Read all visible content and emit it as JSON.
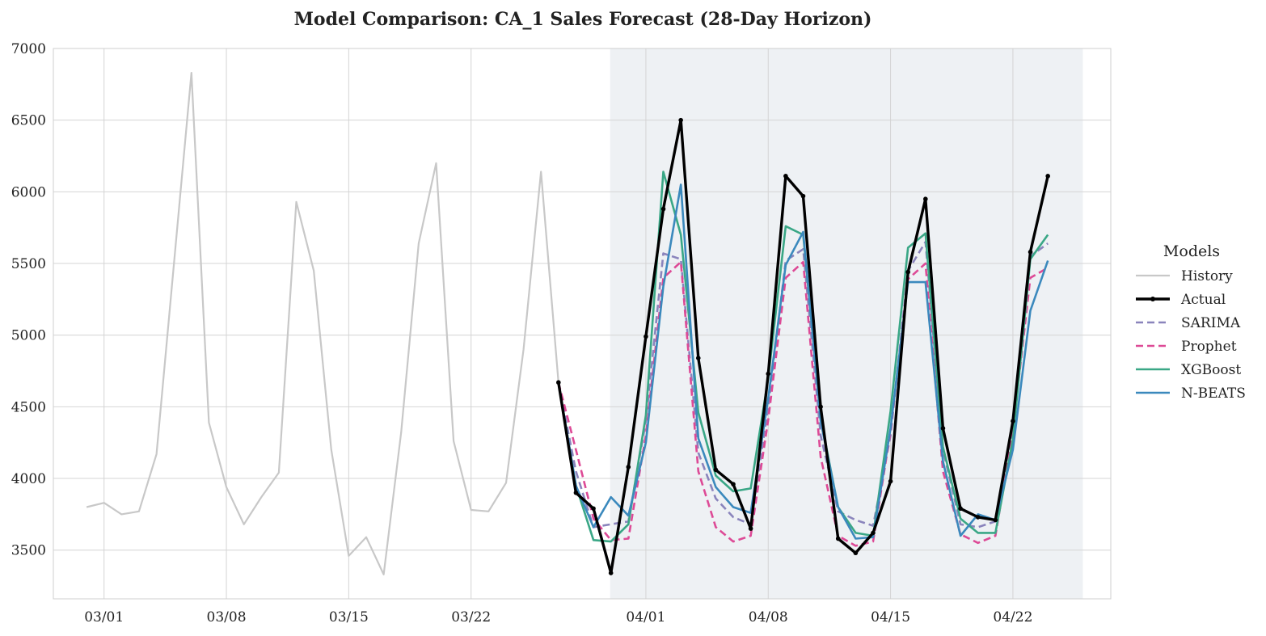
{
  "chart_data": {
    "type": "line",
    "title": "Model Comparison: CA_1 Sales Forecast (28-Day Horizon)",
    "xlabel": "",
    "ylabel": "",
    "grid": true,
    "legend_title": "Models",
    "legend_position": "right",
    "x_start_date": "02/28",
    "x_range_days": [
      -1.9,
      58.6
    ],
    "ylim": [
      3160,
      7000
    ],
    "y_ticks": [
      3500,
      4000,
      4500,
      5000,
      5500,
      6000,
      6500,
      7000
    ],
    "x_ticks": [
      {
        "day": 1,
        "label": "03/01"
      },
      {
        "day": 8,
        "label": "03/08"
      },
      {
        "day": 15,
        "label": "03/15"
      },
      {
        "day": 22,
        "label": "03/22"
      },
      {
        "day": 32,
        "label": "04/01"
      },
      {
        "day": 39,
        "label": "04/08"
      },
      {
        "day": 46,
        "label": "04/15"
      },
      {
        "day": 53,
        "label": "04/22"
      }
    ],
    "forecast_window_days": [
      30,
      57
    ],
    "history": {
      "name": "History",
      "start_day": 0,
      "color": "#c8c8c8",
      "values": [
        3800,
        3830,
        3750,
        3770,
        4170,
        5500,
        6830,
        4390,
        3940,
        3680,
        3870,
        4040,
        5930,
        5450,
        4200,
        3460,
        3590,
        3330,
        4320,
        5640,
        6200,
        4260,
        3780,
        3770,
        3970,
        4900,
        6140,
        4670
      ]
    },
    "series": [
      {
        "name": "Actual",
        "start_day": 27,
        "color": "#000000",
        "style": "solid-marker",
        "values": [
          4670,
          3900,
          3790,
          3340,
          4080,
          4990,
          5880,
          6500,
          4840,
          4060,
          3960,
          3650,
          4730,
          6110,
          5970,
          4500,
          3580,
          3480,
          3620,
          3980,
          5440,
          5950,
          4350,
          3790,
          3730,
          3710,
          4400,
          5580,
          6110
        ]
      },
      {
        "name": "SARIMA",
        "start_day": 27,
        "color": "#8a84bc",
        "style": "dashed",
        "values": [
          4670,
          4050,
          3660,
          3680,
          3700,
          4400,
          5570,
          5530,
          4180,
          3860,
          3730,
          3680,
          4500,
          5520,
          5600,
          4300,
          3770,
          3710,
          3670,
          4300,
          5450,
          5650,
          4200,
          3680,
          3660,
          3700,
          4350,
          5550,
          5640
        ]
      },
      {
        "name": "Prophet",
        "start_day": 27,
        "color": "#dd4a96",
        "style": "dashed",
        "values": [
          4670,
          4200,
          3720,
          3570,
          3580,
          4300,
          5400,
          5510,
          4050,
          3660,
          3560,
          3600,
          4410,
          5400,
          5510,
          4150,
          3600,
          3530,
          3560,
          4330,
          5390,
          5500,
          4050,
          3610,
          3550,
          3600,
          4330,
          5400,
          5470
        ]
      },
      {
        "name": "XGBoost",
        "start_day": 27,
        "color": "#3aa786",
        "style": "solid",
        "values": [
          4670,
          3950,
          3570,
          3560,
          3680,
          4440,
          6140,
          5700,
          4460,
          4020,
          3910,
          3930,
          4700,
          5760,
          5700,
          4420,
          3800,
          3620,
          3600,
          4470,
          5610,
          5710,
          4220,
          3720,
          3620,
          3620,
          4270,
          5530,
          5700
        ]
      },
      {
        "name": "N-BEATS",
        "start_day": 27,
        "color": "#3b89bd",
        "style": "solid",
        "values": [
          4670,
          3950,
          3660,
          3870,
          3740,
          4250,
          5340,
          6050,
          4280,
          3940,
          3800,
          3760,
          4560,
          5490,
          5720,
          4400,
          3800,
          3580,
          3590,
          4350,
          5370,
          5370,
          4120,
          3600,
          3750,
          3710,
          4200,
          5170,
          5520
        ]
      }
    ]
  }
}
